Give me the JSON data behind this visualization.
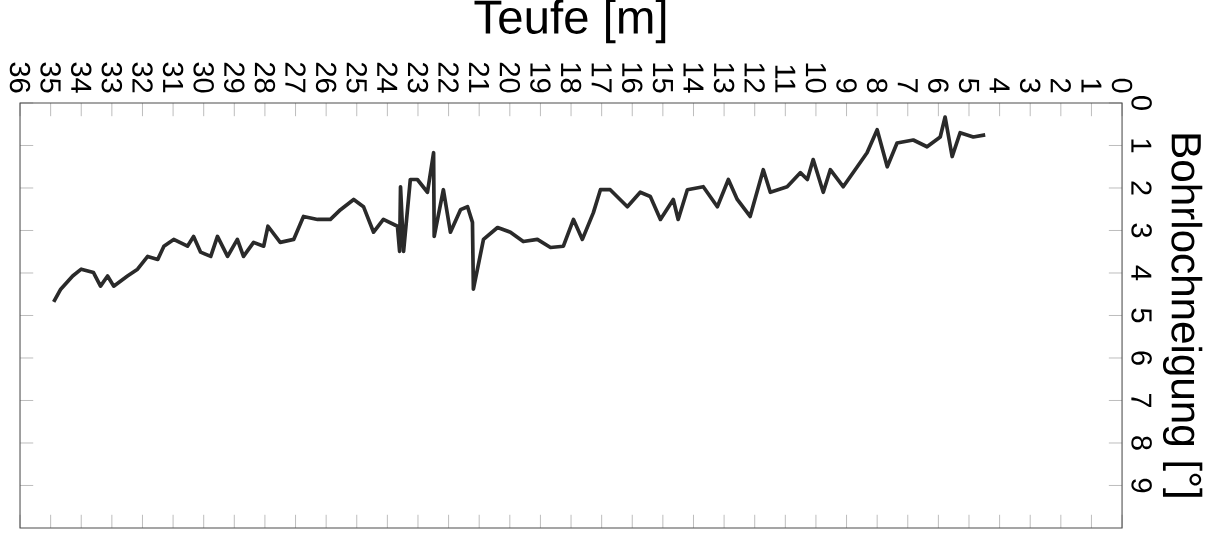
{
  "chart_data": {
    "type": "line",
    "xlabel": "Teufe [m]",
    "ylabel": "Bohrlochneigung [°]",
    "xlim": [
      36,
      0
    ],
    "ylim": [
      10,
      0
    ],
    "xticks": [
      36,
      35,
      34,
      33,
      32,
      31,
      30,
      29,
      28,
      27,
      26,
      25,
      24,
      23,
      22,
      21,
      20,
      19,
      18,
      17,
      16,
      15,
      14,
      13,
      12,
      11,
      10,
      9,
      8,
      7,
      6,
      5,
      4,
      3,
      2,
      1,
      0
    ],
    "yticks": [
      0,
      1,
      2,
      3,
      4,
      5,
      6,
      7,
      8,
      9
    ],
    "series": [
      {
        "color": "#2a2a2a",
        "x": [
          34.9,
          34.67,
          34.28,
          34.0,
          33.6,
          33.37,
          33.14,
          32.94,
          32.49,
          32.16,
          31.83,
          31.5,
          31.3,
          30.98,
          30.53,
          30.33,
          30.1,
          29.77,
          29.55,
          29.22,
          28.9,
          28.7,
          28.37,
          28.04,
          27.9,
          27.5,
          27.06,
          26.74,
          26.28,
          25.86,
          25.53,
          25.1,
          24.78,
          24.45,
          24.13,
          23.67,
          23.6,
          23.57,
          23.47,
          23.25,
          23.02,
          22.69,
          22.49,
          22.47,
          22.17,
          21.94,
          21.61,
          21.38,
          21.22,
          21.19,
          20.86,
          20.4,
          19.98,
          19.56,
          19.1,
          18.67,
          18.25,
          17.92,
          17.63,
          17.27,
          17.04,
          16.72,
          16.16,
          15.74,
          15.41,
          15.08,
          14.66,
          14.5,
          14.2,
          13.68,
          13.22,
          12.86,
          12.57,
          12.15,
          11.72,
          11.49,
          10.94,
          10.51,
          10.28,
          10.09,
          9.76,
          9.53,
          9.11,
          8.65,
          8.33,
          8.0,
          7.67,
          7.35,
          6.82,
          6.37,
          5.94,
          5.78,
          5.55,
          5.29,
          4.86,
          4.47
        ],
        "values": [
          4.68,
          4.38,
          4.07,
          3.91,
          3.99,
          4.31,
          4.07,
          4.31,
          4.07,
          3.91,
          3.61,
          3.68,
          3.37,
          3.21,
          3.37,
          3.14,
          3.51,
          3.61,
          3.14,
          3.61,
          3.21,
          3.61,
          3.28,
          3.37,
          2.9,
          3.28,
          3.21,
          2.67,
          2.74,
          2.74,
          2.51,
          2.27,
          2.44,
          3.04,
          2.74,
          2.9,
          3.49,
          1.97,
          3.49,
          1.8,
          1.8,
          2.1,
          1.17,
          3.14,
          2.04,
          3.04,
          2.51,
          2.44,
          2.81,
          4.38,
          3.21,
          2.93,
          3.04,
          3.26,
          3.21,
          3.4,
          3.37,
          2.74,
          3.21,
          2.58,
          2.04,
          2.04,
          2.44,
          2.1,
          2.2,
          2.74,
          2.27,
          2.74,
          2.04,
          1.97,
          2.44,
          1.8,
          2.27,
          2.67,
          1.57,
          2.1,
          1.97,
          1.64,
          1.8,
          1.33,
          2.1,
          1.57,
          1.97,
          1.5,
          1.17,
          0.63,
          1.5,
          0.94,
          0.87,
          1.03,
          0.8,
          0.33,
          1.26,
          0.7,
          0.8,
          0.75
        ]
      }
    ]
  }
}
